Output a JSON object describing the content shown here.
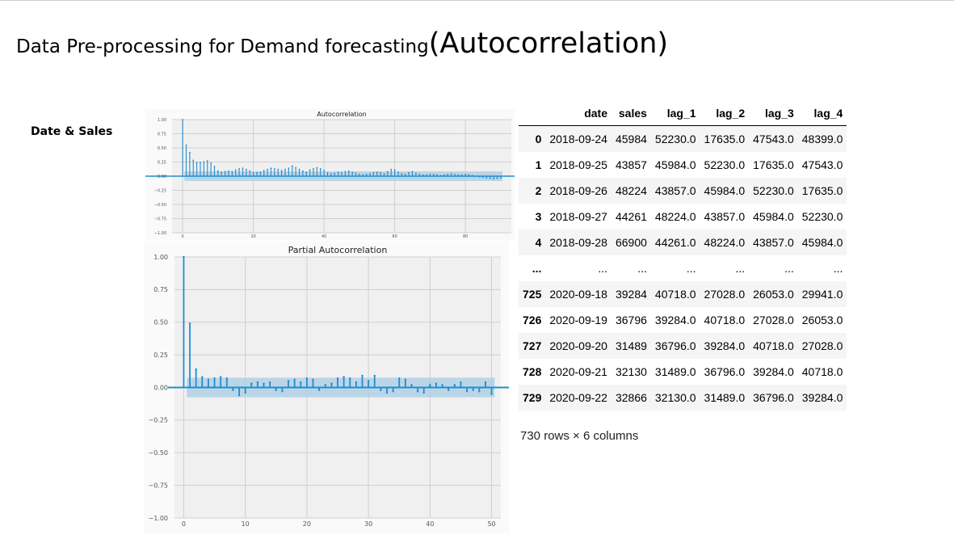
{
  "page": {
    "title_main": "Data Pre-processing for Demand forecasting",
    "title_paren": "(Autocorrelation)",
    "section_label": "Date & Sales"
  },
  "chart_data": [
    {
      "type": "bar",
      "name": "acf",
      "title": "Autocorrelation",
      "xlim": [
        -3,
        93
      ],
      "ylim": [
        -1.0,
        1.0
      ],
      "xticks": [
        0,
        20,
        40,
        60,
        80
      ],
      "yticks": [
        1.0,
        0.75,
        0.5,
        0.25,
        0.0,
        -0.25,
        -0.5,
        -0.75,
        -1.0
      ],
      "xtick_labels": [
        "0",
        "20",
        "40",
        "60",
        "80"
      ],
      "ytick_labels": [
        "1.00",
        "0.75",
        "0.50",
        "0.25",
        "0.00",
        "−0.25",
        "−0.50",
        "−0.75",
        "−1.00"
      ],
      "grid": true,
      "confidence_band": 0.085,
      "lags": [
        0,
        1,
        2,
        3,
        4,
        5,
        6,
        7,
        8,
        9,
        10,
        11,
        12,
        13,
        14,
        15,
        16,
        17,
        18,
        19,
        20,
        21,
        22,
        23,
        24,
        25,
        26,
        27,
        28,
        29,
        30,
        31,
        32,
        33,
        34,
        35,
        36,
        37,
        38,
        39,
        40,
        41,
        42,
        43,
        44,
        45,
        46,
        47,
        48,
        49,
        50,
        51,
        52,
        53,
        54,
        55,
        56,
        57,
        58,
        59,
        60,
        61,
        62,
        63,
        64,
        65,
        66,
        67,
        68,
        69,
        70,
        71,
        72,
        73,
        74,
        75,
        76,
        77,
        78,
        79,
        80,
        81,
        82,
        83,
        84,
        85,
        86,
        87,
        88,
        89,
        90
      ],
      "values": [
        1.0,
        0.55,
        0.42,
        0.28,
        0.24,
        0.24,
        0.25,
        0.27,
        0.23,
        0.17,
        0.09,
        0.07,
        0.08,
        0.09,
        0.08,
        0.11,
        0.13,
        0.14,
        0.12,
        0.09,
        0.06,
        0.06,
        0.07,
        0.1,
        0.12,
        0.14,
        0.13,
        0.12,
        0.1,
        0.12,
        0.14,
        0.18,
        0.15,
        0.12,
        0.09,
        0.07,
        0.11,
        0.13,
        0.15,
        0.13,
        0.1,
        0.06,
        0.04,
        0.05,
        0.07,
        0.06,
        0.08,
        0.09,
        0.07,
        0.05,
        0.03,
        0.02,
        0.03,
        0.04,
        0.06,
        0.07,
        0.06,
        0.04,
        0.08,
        0.12,
        0.11,
        0.07,
        0.04,
        0.03,
        0.06,
        0.08,
        0.05,
        0.03,
        0.02,
        0.02,
        0.03,
        0.03,
        0.02,
        0.01,
        0.02,
        0.03,
        0.04,
        0.03,
        0.02,
        0.02,
        0.03,
        0.02,
        0.01,
        0.0,
        -0.01,
        -0.02,
        -0.03,
        -0.04,
        -0.05,
        -0.04,
        -0.03
      ]
    },
    {
      "type": "bar",
      "name": "pacf",
      "title": "Partial Autocorrelation",
      "xlim": [
        -1.5,
        51.5
      ],
      "ylim": [
        -1.0,
        1.0
      ],
      "xticks": [
        0,
        10,
        20,
        30,
        40,
        50
      ],
      "yticks": [
        1.0,
        0.75,
        0.5,
        0.25,
        0.0,
        -0.25,
        -0.5,
        -0.75,
        -1.0
      ],
      "xtick_labels": [
        "0",
        "10",
        "20",
        "30",
        "40",
        "50"
      ],
      "ytick_labels": [
        "1.00",
        "0.75",
        "0.50",
        "0.25",
        "0.00",
        "−0.25",
        "−0.50",
        "−0.75",
        "−1.00"
      ],
      "grid": true,
      "confidence_band": 0.075,
      "lags": [
        0,
        1,
        2,
        3,
        4,
        5,
        6,
        7,
        8,
        9,
        10,
        11,
        12,
        13,
        14,
        15,
        16,
        17,
        18,
        19,
        20,
        21,
        22,
        23,
        24,
        25,
        26,
        27,
        28,
        29,
        30,
        31,
        32,
        33,
        34,
        35,
        36,
        37,
        38,
        39,
        40,
        41,
        42,
        43,
        44,
        45,
        46,
        47,
        48,
        49,
        50
      ],
      "values": [
        1.0,
        0.49,
        0.14,
        0.08,
        0.06,
        0.07,
        0.08,
        0.07,
        -0.02,
        -0.06,
        -0.04,
        0.03,
        0.04,
        0.03,
        0.04,
        -0.02,
        -0.03,
        0.05,
        0.06,
        0.04,
        0.07,
        0.06,
        -0.02,
        0.02,
        0.03,
        0.07,
        0.08,
        0.07,
        0.04,
        0.09,
        0.05,
        0.09,
        -0.02,
        -0.04,
        -0.03,
        0.07,
        0.06,
        0.02,
        -0.03,
        -0.04,
        0.02,
        0.03,
        0.02,
        -0.02,
        0.02,
        0.04,
        -0.03,
        -0.02,
        -0.03,
        0.04,
        -0.05
      ]
    }
  ],
  "dataframe": {
    "columns": [
      "",
      "date",
      "sales",
      "lag_1",
      "lag_2",
      "lag_3",
      "lag_4"
    ],
    "rows": [
      [
        "0",
        "2018-09-24",
        "45984",
        "52230.0",
        "17635.0",
        "47543.0",
        "48399.0"
      ],
      [
        "1",
        "2018-09-25",
        "43857",
        "45984.0",
        "52230.0",
        "17635.0",
        "47543.0"
      ],
      [
        "2",
        "2018-09-26",
        "48224",
        "43857.0",
        "45984.0",
        "52230.0",
        "17635.0"
      ],
      [
        "3",
        "2018-09-27",
        "44261",
        "48224.0",
        "43857.0",
        "45984.0",
        "52230.0"
      ],
      [
        "4",
        "2018-09-28",
        "66900",
        "44261.0",
        "48224.0",
        "43857.0",
        "45984.0"
      ],
      [
        "...",
        "...",
        "...",
        "...",
        "...",
        "...",
        "..."
      ],
      [
        "725",
        "2020-09-18",
        "39284",
        "40718.0",
        "27028.0",
        "26053.0",
        "29941.0"
      ],
      [
        "726",
        "2020-09-19",
        "36796",
        "39284.0",
        "40718.0",
        "27028.0",
        "26053.0"
      ],
      [
        "727",
        "2020-09-20",
        "31489",
        "36796.0",
        "39284.0",
        "40718.0",
        "27028.0"
      ],
      [
        "728",
        "2020-09-21",
        "32130",
        "31489.0",
        "36796.0",
        "39284.0",
        "40718.0"
      ],
      [
        "729",
        "2020-09-22",
        "32866",
        "32130.0",
        "31489.0",
        "36796.0",
        "39284.0"
      ]
    ],
    "footer": "730 rows × 6 columns"
  },
  "colors": {
    "stem": "#1f8ecf",
    "band": "#a9cce6",
    "plot_bg": "#f0f0f0",
    "grid": "#cfcfcf"
  }
}
